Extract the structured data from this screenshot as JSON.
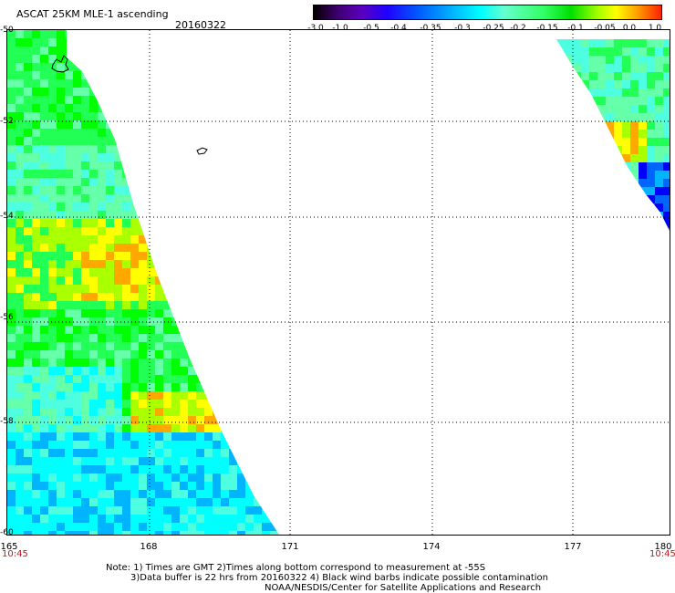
{
  "header": {
    "title": "ASCAT 25KM MLE-1 ascending",
    "date": "20160322"
  },
  "colorbar": {
    "labels": [
      "-3.0",
      "-1.0",
      "-0.5",
      "-0.4",
      "-0.35",
      "-0.3",
      "-0.25",
      "-0.2",
      "-0.15",
      "-0.1",
      "-0.05",
      "0.0",
      "1.0"
    ],
    "colors": [
      "#000000",
      "#400070",
      "#2000ff",
      "#00b4ff",
      "#00ffff",
      "#33ff66",
      "#00e000",
      "#ffff00",
      "#ffa000",
      "#ff2000"
    ]
  },
  "map": {
    "lat_labels": [
      "-50",
      "-52",
      "-54",
      "-56",
      "-58",
      "-60"
    ],
    "lon_labels": [
      "165",
      "168",
      "171",
      "174",
      "177",
      "180"
    ],
    "time_left": "10:45",
    "time_right": "10:45",
    "palette": {
      "cyan": "#00ffff",
      "lightcyan": "#4dffe0",
      "seafoam": "#66ffaa",
      "green": "#22ff55",
      "brightgreen": "#00ff00",
      "yellowgreen": "#aaff00",
      "yellow": "#ffff00",
      "orange": "#ffa800",
      "blue": "#0064ff",
      "skyblue": "#00b4ff",
      "darkblue": "#0000ff"
    }
  },
  "notes": {
    "line1": "Note: 1) Times are GMT 2)Times along bottom correspond to measurement at -55S",
    "line2": "3)Data buffer is 22 hrs from 20160322 4) Black wind barbs indicate possible contamination",
    "line3": "NOAA/NESDIS/Center for Satellite Applications and Research"
  }
}
